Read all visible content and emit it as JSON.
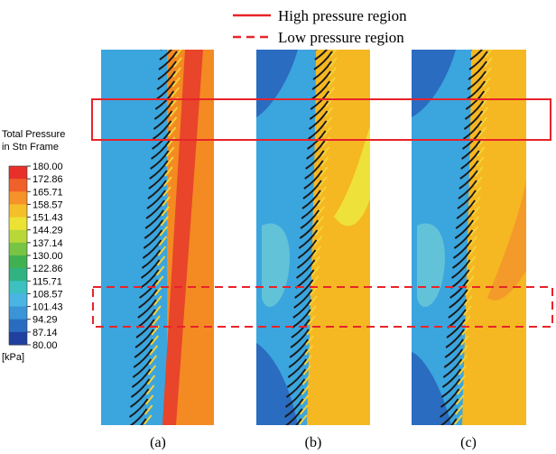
{
  "legend": {
    "items": [
      {
        "label": "High pressure region",
        "style": "solid"
      },
      {
        "label": "Low pressure region",
        "style": "dashed"
      }
    ]
  },
  "colorbar": {
    "title": [
      "Total Pressure",
      "in Stn Frame"
    ],
    "ticks": [
      "180.00",
      "172.86",
      "165.71",
      "158.57",
      "151.43",
      "144.29",
      "137.14",
      "130.00",
      "122.86",
      "115.71",
      "108.57",
      "101.43",
      "94.29",
      "87.14",
      "80.00"
    ],
    "unit": "[kPa]"
  },
  "panels": [
    {
      "label": "(a)"
    },
    {
      "label": "(b)"
    },
    {
      "label": "(c)"
    }
  ]
}
